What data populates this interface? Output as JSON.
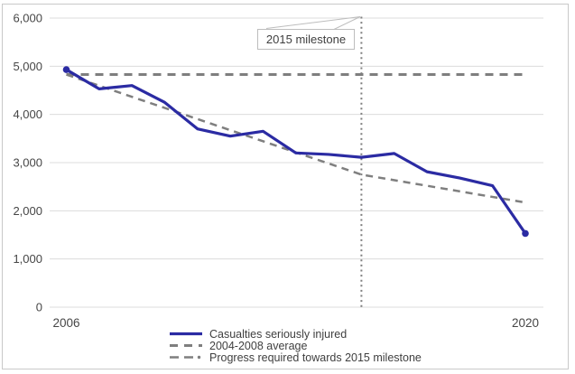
{
  "chart_data": {
    "type": "line",
    "title": "",
    "xlabel": "",
    "ylabel": "",
    "grid": "horizontal",
    "legend_position": "bottom",
    "x_axis": {
      "range": [
        2006,
        2020
      ],
      "ticks": [
        {
          "value": 2006,
          "label": "2006"
        },
        {
          "value": 2020,
          "label": "2020"
        }
      ]
    },
    "y_axis": {
      "range": [
        0,
        6000
      ],
      "ticks": [
        0,
        1000,
        2000,
        3000,
        4000,
        5000,
        6000
      ],
      "tick_labels": [
        "0",
        "1,000",
        "2,000",
        "3,000",
        "4,000",
        "5,000",
        "6,000"
      ]
    },
    "series": [
      {
        "name": "Casualties seriously injured",
        "color": "#2b2ba3",
        "style": "solid",
        "end_markers": true,
        "x": [
          2006,
          2007,
          2008,
          2009,
          2010,
          2011,
          2012,
          2013,
          2014,
          2015,
          2016,
          2017,
          2018,
          2019,
          2020
        ],
        "values": [
          4930,
          4530,
          4600,
          4250,
          3700,
          3550,
          3650,
          3200,
          3170,
          3110,
          3190,
          2810,
          2680,
          2520,
          1530
        ]
      },
      {
        "name": "2004-2008 average",
        "color": "#7f7f7f",
        "style": "dashed",
        "end_markers": false,
        "x": [
          2006,
          2020
        ],
        "values": [
          4827,
          4827
        ]
      },
      {
        "name": "Progress required towards 2015 milestone",
        "color": "#7f7f7f",
        "style": "dashed",
        "end_markers": false,
        "x": [
          2006,
          2015,
          2020
        ],
        "values": [
          4827,
          2751,
          2172
        ]
      }
    ],
    "milestone_line": {
      "x": 2015,
      "style": "dotted",
      "color": "#7f7f7f"
    },
    "annotation": {
      "label": "2015 milestone"
    }
  },
  "colors": {
    "gridline": "#dcdcdc",
    "axis_text": "#464646",
    "frame_border": "#c9c9c9",
    "leader_line": "#bdbdbd"
  }
}
